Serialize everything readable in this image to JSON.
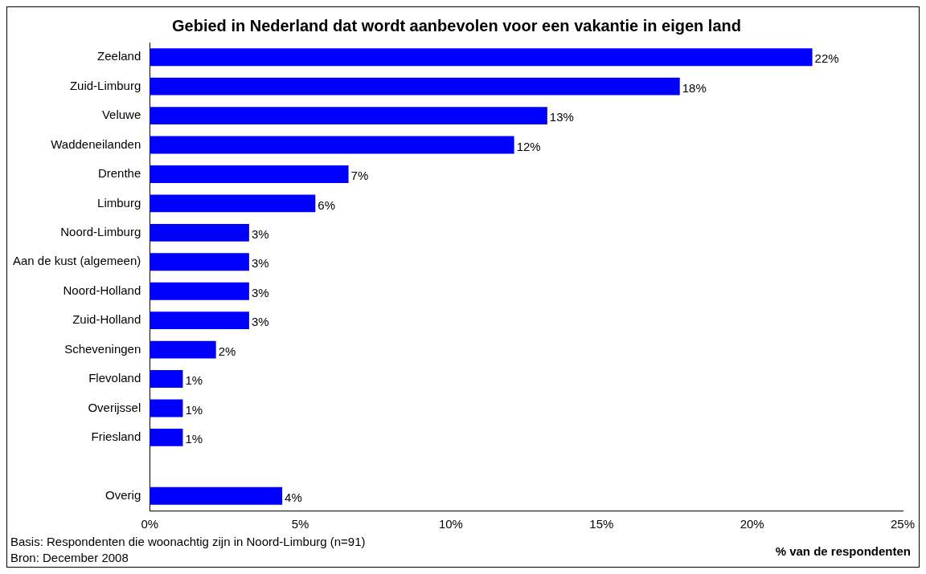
{
  "chart_data": {
    "type": "bar",
    "orientation": "horizontal",
    "title": "Gebied in Nederland dat wordt aanbevolen voor een vakantie in eigen land",
    "categories": [
      "Zeeland",
      "Zuid-Limburg",
      "Veluwe",
      "Waddeneilanden",
      "Drenthe",
      "Limburg",
      "Noord-Limburg",
      "Aan de kust (algemeen)",
      "Noord-Holland",
      "Zuid-Holland",
      "Scheveningen",
      "Flevoland",
      "Overijssel",
      "Friesland",
      null,
      "Overig"
    ],
    "values": [
      22.0,
      17.6,
      13.2,
      12.1,
      6.6,
      5.5,
      3.3,
      3.3,
      3.3,
      3.3,
      2.2,
      1.1,
      1.1,
      1.1,
      null,
      4.4
    ],
    "value_labels": [
      "22%",
      "18%",
      "13%",
      "12%",
      "7%",
      "6%",
      "3%",
      "3%",
      "3%",
      "3%",
      "2%",
      "1%",
      "1%",
      "1%",
      null,
      "4%"
    ],
    "color": "#0000ff",
    "xlim": [
      0,
      25
    ],
    "xticks": [
      {
        "value": 0,
        "label": "0%"
      },
      {
        "value": 5,
        "label": "5%"
      },
      {
        "value": 10,
        "label": "10%"
      },
      {
        "value": 15,
        "label": "15%"
      },
      {
        "value": 20,
        "label": "20%"
      },
      {
        "value": 25,
        "label": "25%"
      }
    ],
    "xlabel": "% van de respondenten",
    "annotations": [
      "Basis: Respondenten die woonachtig zijn in Noord-Limburg (n=91)",
      "Bron: December 2008"
    ]
  }
}
